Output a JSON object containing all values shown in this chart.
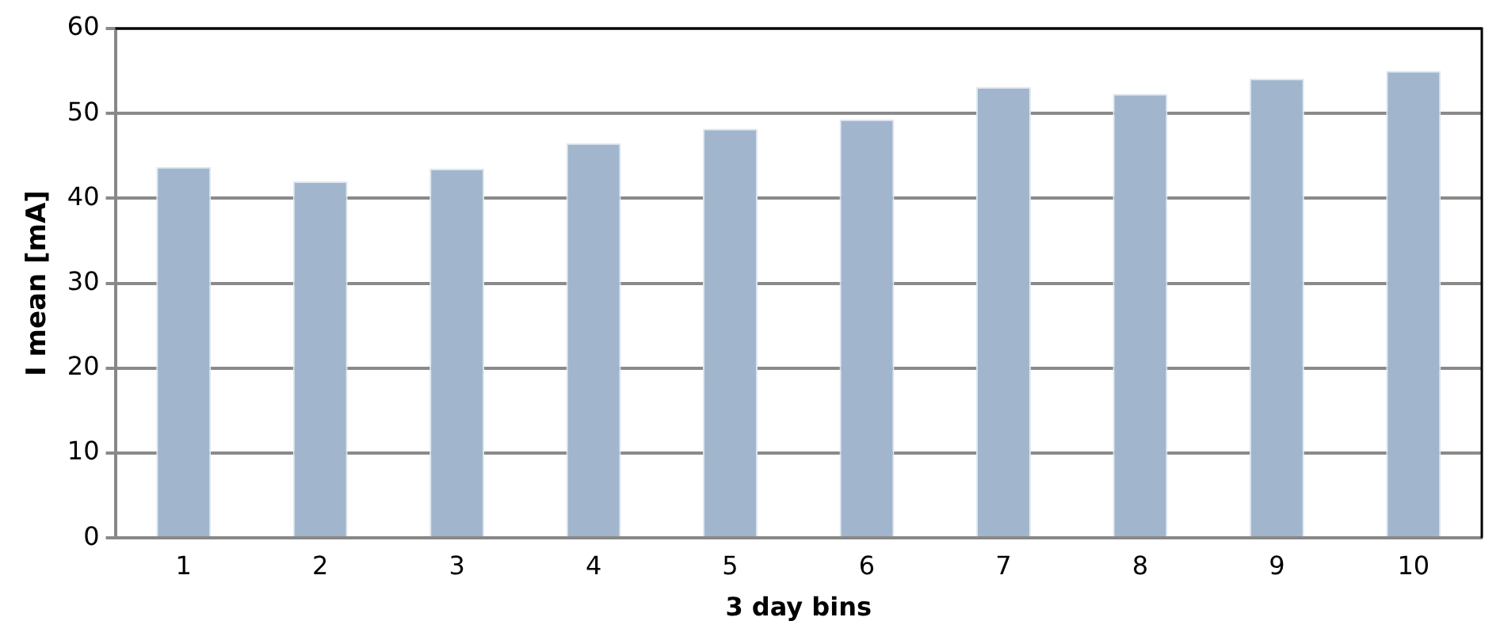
{
  "chart_data": {
    "type": "bar",
    "xlabel": "3 day bins",
    "ylabel": "I mean [mA]",
    "categories": [
      "1",
      "2",
      "3",
      "4",
      "5",
      "6",
      "7",
      "8",
      "9",
      "10"
    ],
    "values": [
      43.7,
      42.0,
      43.5,
      46.5,
      48.2,
      49.3,
      53.1,
      52.3,
      54.1,
      55.0
    ],
    "color": "#a1b6cd",
    "ylim": [
      0,
      60
    ],
    "yticks": [
      0,
      10,
      20,
      30,
      40,
      50,
      60
    ],
    "grid": "y",
    "legend": false
  }
}
